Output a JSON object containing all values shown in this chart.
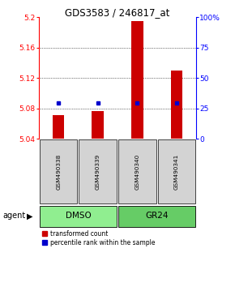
{
  "title": "GDS3583 / 246817_at",
  "samples": [
    "GSM490338",
    "GSM490339",
    "GSM490340",
    "GSM490341"
  ],
  "red_values": [
    5.071,
    5.077,
    5.195,
    5.13
  ],
  "blue_values": [
    5.087,
    5.087,
    5.087,
    5.087
  ],
  "ylim_left": [
    5.04,
    5.2
  ],
  "ylim_right": [
    0,
    100
  ],
  "yticks_left": [
    5.04,
    5.08,
    5.12,
    5.16,
    5.2
  ],
  "ytick_labels_left": [
    "5.04",
    "5.08",
    "5.12",
    "5.16",
    "5.2"
  ],
  "yticks_right": [
    0,
    25,
    50,
    75,
    100
  ],
  "ytick_labels_right": [
    "0",
    "25",
    "50",
    "75",
    "100%"
  ],
  "bar_color": "#cc0000",
  "dot_color": "#0000cc",
  "bar_bottom": 5.04,
  "background_color": "#ffffff",
  "sample_box_color": "#d3d3d3",
  "group_ranges": [
    [
      0,
      1,
      "DMSO",
      "#90ee90"
    ],
    [
      2,
      3,
      "GR24",
      "#66cc66"
    ]
  ],
  "legend_red": "transformed count",
  "legend_blue": "percentile rank within the sample",
  "agent_label": "agent"
}
